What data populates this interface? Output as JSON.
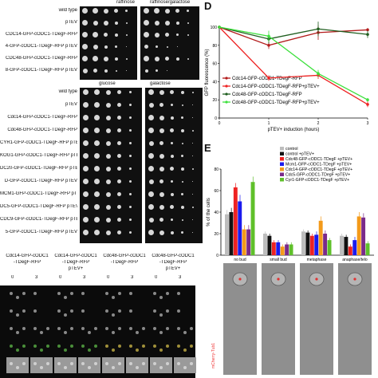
{
  "panel_a": {
    "col_headers": [
      "raffinose",
      "raffinose/galactose"
    ],
    "rows": [
      "wild type",
      "pTEV",
      "CDC14-GFP-cODC1-TDegF-RFP",
      "4-GFP-cODC1-TDegF-RFP pTEV",
      "CDC48-GFP-cODC1-TDegF-RFP",
      "8-GFP-cODC1-TDegF-RFP pTEV"
    ]
  },
  "panel_b": {
    "col_headers": [
      "glucose",
      "galactose"
    ],
    "rows": [
      "wild type",
      "pTEV",
      "Cdc14-GFP-cODC1-TDegF-RFP",
      "Cdc48-GFP-cODC1-TDegF-RFP",
      "CYR1-GFP-cODC1-TDegF-RFP pTEV",
      "KOG1-GFP-cODC1-TDegF-RFP pTEV",
      "DC20-GFP-cODC1-TDegF-RFP pTEV",
      "D-GFP-cODC1-TDegF-RFP pTEV",
      "MCM1-GFP-cODC1-TDegF-RFP pTEV",
      "DC5-GFP-cODC1-TDegF-RFP pTEV",
      "CDC9-GFP-cODC1-TDegF-RFP pTEV",
      "5-GFP-cODC1-TDegF-RFP pTEV"
    ]
  },
  "panel_c": {
    "columns": [
      {
        "line1": "Cdc14-GFP-cODC1",
        "line2": "-TDegF-RFP",
        "line3": ""
      },
      {
        "line1": "Cdc14-GFP-cODC1",
        "line2": "-TDegF-RFP",
        "line3": "pTEV+"
      },
      {
        "line1": "Cdc48-GFP-cODC1",
        "line2": "-TDegF-RFP",
        "line3": ""
      },
      {
        "line1": "Cdc48-GFP-cODC1",
        "line2": "-TDegF-RFP",
        "line3": "pTEV+"
      }
    ],
    "time_labels": [
      "0",
      "3",
      "0",
      "3",
      "0",
      "3",
      "0",
      "3"
    ],
    "row_labels": [
      "h",
      "0",
      "0",
      "B",
      "h"
    ]
  },
  "panel_d": {
    "letter": "D",
    "chart_data": {
      "type": "line",
      "xlabel": "pTEV+ induction (hours)",
      "ylabel": "GFP fluorescence (%)",
      "x": [
        0,
        1,
        2,
        3
      ],
      "xlim": [
        0,
        3
      ],
      "ylim": [
        0,
        100
      ],
      "yticks": [
        0,
        20,
        40,
        60,
        80,
        100
      ],
      "series": [
        {
          "name": "Cdc14-GFP-cODC1-TDegF-RFP",
          "color": "#b21a1a",
          "values": [
            100,
            80,
            94,
            97
          ],
          "errors": [
            0,
            4,
            8,
            2
          ]
        },
        {
          "name": "Cdc14-GFP-cODC1-TDegF-RFP+pTEV+",
          "color": "#ee2222",
          "values": [
            100,
            44,
            47,
            15
          ],
          "errors": [
            0,
            3,
            4,
            3
          ]
        },
        {
          "name": "Cdc48-GFP-cODC1-TDegF-RFP",
          "color": "#1f5e1f",
          "values": [
            100,
            87,
            98,
            92
          ],
          "errors": [
            0,
            5,
            8,
            4
          ]
        },
        {
          "name": "Cdc48-GFP-cODC1-TDegF-RFP+pTEV+",
          "color": "#3de03d",
          "values": [
            100,
            90,
            49,
            20
          ],
          "errors": [
            0,
            6,
            4,
            2
          ]
        }
      ]
    }
  },
  "panel_e": {
    "letter": "E",
    "chart_data": {
      "type": "bar",
      "ylabel": "% of the cells",
      "ylim": [
        0,
        80
      ],
      "yticks": [
        0,
        20,
        40,
        60,
        80
      ],
      "categories": [
        "no bud",
        "small bud",
        "metaphase",
        "anaphase/telo"
      ],
      "series": [
        {
          "name": "control",
          "color": "#bdbdbd",
          "values": [
            38,
            20,
            22,
            18
          ],
          "errors": [
            4,
            2,
            2,
            2
          ]
        },
        {
          "name": "control +pTEV+",
          "color": "#111111",
          "values": [
            40,
            18,
            21,
            17
          ],
          "errors": [
            4,
            2,
            2,
            2
          ]
        },
        {
          "name": "Cdc48-GFP-cODC1-TDegF +pTEV+",
          "color": "#ee2222",
          "values": [
            63,
            12,
            18,
            8
          ],
          "errors": [
            4,
            2,
            2,
            2
          ]
        },
        {
          "name": "Mcm1-GFP-cODC1-TDegF +pTEV+",
          "color": "#1a1aee",
          "values": [
            50,
            12,
            19,
            14
          ],
          "errors": [
            6,
            2,
            3,
            3
          ]
        },
        {
          "name": "Cdc14-GFP-cODC1-TDegF +pTEV+",
          "color": "#f39a1a",
          "values": [
            24,
            8,
            32,
            36
          ],
          "errors": [
            4,
            2,
            4,
            4
          ]
        },
        {
          "name": "Cdc5-GFP-cODC1-TDegF +pTEV+",
          "color": "#7a2a8a",
          "values": [
            24,
            10,
            20,
            35
          ],
          "errors": [
            4,
            2,
            3,
            4
          ]
        },
        {
          "name": "Cyr1-GFP-cODC1-TDegF +pTEV+",
          "color": "#5fc02a",
          "values": [
            68,
            10,
            14,
            11
          ],
          "errors": [
            5,
            2,
            2,
            2
          ]
        }
      ]
    },
    "image_label": "mCherry-Tub1"
  }
}
